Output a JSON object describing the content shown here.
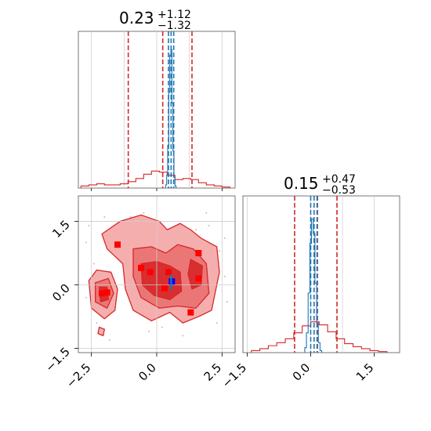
{
  "chart_data": [
    {
      "type": "histogram",
      "panel": "top-left",
      "title": {
        "value": "0.23",
        "plus": "+1.12",
        "minus": "−1.32"
      },
      "xlim": [
        -3.0,
        3.0
      ],
      "grid": true,
      "series": [
        {
          "color": "#d62728",
          "quantile_lines": [
            -1.09,
            0.23,
            1.35
          ],
          "bins_x": [
            -2.75,
            -2.45,
            -2.15,
            -1.85,
            -1.55,
            -1.25,
            -0.95,
            -0.65,
            -0.35,
            -0.05,
            0.25,
            0.55,
            0.85,
            1.15,
            1.45,
            1.75,
            2.05,
            2.35,
            2.65
          ],
          "bins_y": [
            0.2,
            0.3,
            0.4,
            0.3,
            0.3,
            0.4,
            0.6,
            0.9,
            1.3,
            1.6,
            1.5,
            1.2,
            0.8,
            0.9,
            0.8,
            0.5,
            0.3,
            0.2,
            0.1
          ]
        },
        {
          "color": "#1f77b4",
          "quantile_lines": [
            0.45,
            0.55,
            0.65
          ],
          "bins_x": [
            0.36,
            0.4,
            0.44,
            0.48,
            0.52,
            0.56,
            0.6,
            0.64,
            0.68,
            0.72
          ],
          "bins_y": [
            0.3,
            1.2,
            4.0,
            9.0,
            12.5,
            13.0,
            8.0,
            3.5,
            1.0,
            0.2
          ]
        }
      ],
      "ymax": 14
    },
    {
      "type": "histogram",
      "panel": "bottom-right",
      "title": {
        "value": "0.15",
        "plus": "+0.47",
        "minus": "−0.53"
      },
      "xlim": [
        -1.6,
        2.1
      ],
      "xticks": [
        "−1.5",
        "0.0",
        "1.5"
      ],
      "grid": true,
      "series": [
        {
          "color": "#d62728",
          "quantile_lines": [
            -0.38,
            0.15,
            0.62
          ],
          "bins_x": [
            -1.3,
            -1.1,
            -0.9,
            -0.7,
            -0.5,
            -0.3,
            -0.1,
            0.1,
            0.3,
            0.5,
            0.7,
            0.9,
            1.1,
            1.3,
            1.5,
            1.7
          ],
          "bins_y": [
            0.2,
            0.4,
            0.7,
            1.0,
            1.4,
            2.0,
            2.7,
            3.1,
            2.8,
            2.1,
            1.4,
            0.9,
            0.6,
            0.4,
            0.2,
            0.1
          ]
        },
        {
          "color": "#1f77b4",
          "quantile_lines": [
            0.0,
            0.08,
            0.16
          ],
          "bins_x": [
            -0.12,
            -0.08,
            -0.04,
            0.0,
            0.04,
            0.08,
            0.12,
            0.16,
            0.2,
            0.24
          ],
          "bins_y": [
            0.5,
            2.0,
            6.0,
            11.0,
            13.5,
            12.0,
            7.0,
            3.0,
            1.0,
            0.2
          ]
        }
      ],
      "ymax": 15
    },
    {
      "type": "contour",
      "panel": "bottom-left",
      "xlim": [
        -3.0,
        3.0
      ],
      "ylim": [
        -1.6,
        2.1
      ],
      "xticks": [
        "−2.5",
        "0.0",
        "2.5"
      ],
      "yticks": [
        "1.5",
        "0.0",
        "−1.5"
      ],
      "grid": true,
      "fill_colors": [
        "#f4a5a5",
        "#ea7070",
        "#d62728"
      ],
      "markers": [
        {
          "x": -1.5,
          "y": 0.95,
          "color": "red"
        },
        {
          "x": -0.6,
          "y": 0.4,
          "color": "red"
        },
        {
          "x": -0.25,
          "y": 0.3,
          "color": "red"
        },
        {
          "x": 0.45,
          "y": 0.3,
          "color": "red"
        },
        {
          "x": 1.6,
          "y": 0.75,
          "color": "red"
        },
        {
          "x": 1.6,
          "y": 0.15,
          "color": "red"
        },
        {
          "x": -2.1,
          "y": -0.2,
          "color": "red"
        },
        {
          "x": -1.9,
          "y": -0.18,
          "color": "red"
        },
        {
          "x": 0.3,
          "y": -0.08,
          "color": "red"
        },
        {
          "x": 1.3,
          "y": -0.65,
          "color": "red"
        },
        {
          "x": 0.58,
          "y": 0.08,
          "color": "blue"
        }
      ]
    }
  ]
}
